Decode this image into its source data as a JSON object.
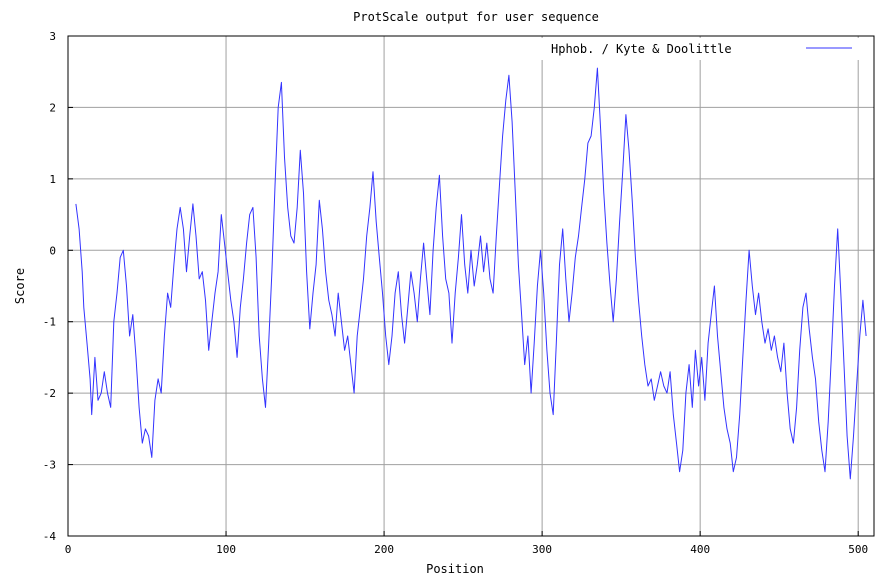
{
  "chart_data": {
    "type": "line",
    "title": "ProtScale output for user sequence",
    "xlabel": "Position",
    "ylabel": "Score",
    "xlim": [
      0,
      510
    ],
    "ylim": [
      -4,
      3
    ],
    "x_ticks": [
      "0",
      "100",
      "200",
      "300",
      "400",
      "500"
    ],
    "y_ticks": [
      "3",
      "2",
      "1",
      "0",
      "-1",
      "-2",
      "-3",
      "-4"
    ],
    "grid": true,
    "legend_position": "top-right",
    "series_color": "#3333ff",
    "series": [
      {
        "name": "Hphob. / Kyte & Doolittle",
        "points": [
          [
            5,
            0.65
          ],
          [
            7,
            0.3
          ],
          [
            9,
            -0.3
          ],
          [
            10,
            -0.8
          ],
          [
            12,
            -1.3
          ],
          [
            14,
            -1.8
          ],
          [
            15,
            -2.3
          ],
          [
            17,
            -1.5
          ],
          [
            19,
            -2.1
          ],
          [
            21,
            -2.0
          ],
          [
            23,
            -1.7
          ],
          [
            25,
            -2.0
          ],
          [
            27,
            -2.2
          ],
          [
            29,
            -1.0
          ],
          [
            31,
            -0.6
          ],
          [
            33,
            -0.1
          ],
          [
            35,
            0.0
          ],
          [
            37,
            -0.5
          ],
          [
            39,
            -1.2
          ],
          [
            41,
            -0.9
          ],
          [
            43,
            -1.5
          ],
          [
            45,
            -2.2
          ],
          [
            47,
            -2.7
          ],
          [
            49,
            -2.5
          ],
          [
            51,
            -2.6
          ],
          [
            53,
            -2.9
          ],
          [
            55,
            -2.1
          ],
          [
            57,
            -1.8
          ],
          [
            59,
            -2.0
          ],
          [
            61,
            -1.2
          ],
          [
            63,
            -0.6
          ],
          [
            65,
            -0.8
          ],
          [
            67,
            -0.2
          ],
          [
            69,
            0.3
          ],
          [
            71,
            0.6
          ],
          [
            73,
            0.3
          ],
          [
            75,
            -0.3
          ],
          [
            77,
            0.2
          ],
          [
            79,
            0.65
          ],
          [
            81,
            0.2
          ],
          [
            83,
            -0.4
          ],
          [
            85,
            -0.3
          ],
          [
            87,
            -0.7
          ],
          [
            89,
            -1.4
          ],
          [
            91,
            -1.0
          ],
          [
            93,
            -0.6
          ],
          [
            95,
            -0.3
          ],
          [
            97,
            0.5
          ],
          [
            99,
            0.1
          ],
          [
            101,
            -0.3
          ],
          [
            103,
            -0.7
          ],
          [
            105,
            -1.0
          ],
          [
            107,
            -1.5
          ],
          [
            109,
            -0.8
          ],
          [
            111,
            -0.4
          ],
          [
            113,
            0.1
          ],
          [
            115,
            0.5
          ],
          [
            117,
            0.6
          ],
          [
            119,
            -0.1
          ],
          [
            121,
            -1.2
          ],
          [
            123,
            -1.8
          ],
          [
            125,
            -2.2
          ],
          [
            127,
            -1.3
          ],
          [
            129,
            -0.3
          ],
          [
            131,
            0.9
          ],
          [
            133,
            2.0
          ],
          [
            135,
            2.35
          ],
          [
            137,
            1.3
          ],
          [
            139,
            0.6
          ],
          [
            141,
            0.2
          ],
          [
            143,
            0.1
          ],
          [
            145,
            0.6
          ],
          [
            147,
            1.4
          ],
          [
            149,
            0.8
          ],
          [
            151,
            -0.3
          ],
          [
            153,
            -1.1
          ],
          [
            155,
            -0.6
          ],
          [
            157,
            -0.2
          ],
          [
            159,
            0.7
          ],
          [
            161,
            0.3
          ],
          [
            163,
            -0.3
          ],
          [
            165,
            -0.7
          ],
          [
            167,
            -0.9
          ],
          [
            169,
            -1.2
          ],
          [
            171,
            -0.6
          ],
          [
            173,
            -1.0
          ],
          [
            175,
            -1.4
          ],
          [
            177,
            -1.2
          ],
          [
            179,
            -1.6
          ],
          [
            181,
            -2.0
          ],
          [
            183,
            -1.2
          ],
          [
            185,
            -0.8
          ],
          [
            187,
            -0.4
          ],
          [
            189,
            0.2
          ],
          [
            191,
            0.6
          ],
          [
            193,
            1.1
          ],
          [
            195,
            0.4
          ],
          [
            197,
            -0.1
          ],
          [
            199,
            -0.6
          ],
          [
            201,
            -1.2
          ],
          [
            203,
            -1.6
          ],
          [
            205,
            -1.2
          ],
          [
            207,
            -0.6
          ],
          [
            209,
            -0.3
          ],
          [
            211,
            -0.9
          ],
          [
            213,
            -1.3
          ],
          [
            215,
            -0.8
          ],
          [
            217,
            -0.3
          ],
          [
            219,
            -0.6
          ],
          [
            221,
            -1.0
          ],
          [
            223,
            -0.4
          ],
          [
            225,
            0.1
          ],
          [
            227,
            -0.4
          ],
          [
            229,
            -0.9
          ],
          [
            231,
            0.0
          ],
          [
            233,
            0.6
          ],
          [
            235,
            1.05
          ],
          [
            237,
            0.2
          ],
          [
            239,
            -0.4
          ],
          [
            241,
            -0.6
          ],
          [
            243,
            -1.3
          ],
          [
            245,
            -0.6
          ],
          [
            247,
            -0.1
          ],
          [
            249,
            0.5
          ],
          [
            251,
            -0.2
          ],
          [
            253,
            -0.6
          ],
          [
            255,
            0.0
          ],
          [
            257,
            -0.5
          ],
          [
            259,
            -0.2
          ],
          [
            261,
            0.2
          ],
          [
            263,
            -0.3
          ],
          [
            265,
            0.1
          ],
          [
            267,
            -0.4
          ],
          [
            269,
            -0.6
          ],
          [
            271,
            0.2
          ],
          [
            273,
            0.9
          ],
          [
            275,
            1.6
          ],
          [
            277,
            2.1
          ],
          [
            279,
            2.45
          ],
          [
            281,
            1.8
          ],
          [
            283,
            0.8
          ],
          [
            285,
            -0.2
          ],
          [
            287,
            -0.9
          ],
          [
            289,
            -1.6
          ],
          [
            291,
            -1.2
          ],
          [
            293,
            -2.0
          ],
          [
            295,
            -1.3
          ],
          [
            297,
            -0.5
          ],
          [
            299,
            0.0
          ],
          [
            301,
            -0.6
          ],
          [
            303,
            -1.4
          ],
          [
            305,
            -2.0
          ],
          [
            307,
            -2.3
          ],
          [
            309,
            -1.3
          ],
          [
            311,
            -0.2
          ],
          [
            313,
            0.3
          ],
          [
            315,
            -0.4
          ],
          [
            317,
            -1.0
          ],
          [
            319,
            -0.6
          ],
          [
            321,
            -0.1
          ],
          [
            323,
            0.2
          ],
          [
            325,
            0.6
          ],
          [
            327,
            1.0
          ],
          [
            329,
            1.5
          ],
          [
            331,
            1.6
          ],
          [
            333,
            2.0
          ],
          [
            335,
            2.55
          ],
          [
            337,
            1.7
          ],
          [
            339,
            0.8
          ],
          [
            341,
            0.1
          ],
          [
            343,
            -0.5
          ],
          [
            345,
            -1.0
          ],
          [
            347,
            -0.4
          ],
          [
            349,
            0.4
          ],
          [
            351,
            1.1
          ],
          [
            353,
            1.9
          ],
          [
            355,
            1.4
          ],
          [
            357,
            0.7
          ],
          [
            359,
            -0.1
          ],
          [
            361,
            -0.7
          ],
          [
            363,
            -1.2
          ],
          [
            365,
            -1.6
          ],
          [
            367,
            -1.9
          ],
          [
            369,
            -1.8
          ],
          [
            371,
            -2.1
          ],
          [
            373,
            -1.9
          ],
          [
            375,
            -1.7
          ],
          [
            377,
            -1.9
          ],
          [
            379,
            -2.0
          ],
          [
            381,
            -1.7
          ],
          [
            383,
            -2.3
          ],
          [
            385,
            -2.7
          ],
          [
            387,
            -3.1
          ],
          [
            389,
            -2.8
          ],
          [
            391,
            -2.0
          ],
          [
            393,
            -1.6
          ],
          [
            395,
            -2.2
          ],
          [
            397,
            -1.4
          ],
          [
            399,
            -1.9
          ],
          [
            401,
            -1.5
          ],
          [
            403,
            -2.1
          ],
          [
            405,
            -1.3
          ],
          [
            407,
            -0.9
          ],
          [
            409,
            -0.5
          ],
          [
            411,
            -1.2
          ],
          [
            413,
            -1.7
          ],
          [
            415,
            -2.2
          ],
          [
            417,
            -2.5
          ],
          [
            419,
            -2.7
          ],
          [
            421,
            -3.1
          ],
          [
            423,
            -2.9
          ],
          [
            425,
            -2.3
          ],
          [
            427,
            -1.5
          ],
          [
            429,
            -0.7
          ],
          [
            431,
            0.0
          ],
          [
            433,
            -0.5
          ],
          [
            435,
            -0.9
          ],
          [
            437,
            -0.6
          ],
          [
            439,
            -1.0
          ],
          [
            441,
            -1.3
          ],
          [
            443,
            -1.1
          ],
          [
            445,
            -1.4
          ],
          [
            447,
            -1.2
          ],
          [
            449,
            -1.5
          ],
          [
            451,
            -1.7
          ],
          [
            453,
            -1.3
          ],
          [
            455,
            -2.0
          ],
          [
            457,
            -2.5
          ],
          [
            459,
            -2.7
          ],
          [
            461,
            -2.2
          ],
          [
            463,
            -1.4
          ],
          [
            465,
            -0.8
          ],
          [
            467,
            -0.6
          ],
          [
            469,
            -1.1
          ],
          [
            471,
            -1.5
          ],
          [
            473,
            -1.8
          ],
          [
            475,
            -2.4
          ],
          [
            477,
            -2.8
          ],
          [
            479,
            -3.1
          ],
          [
            481,
            -2.4
          ],
          [
            483,
            -1.5
          ],
          [
            485,
            -0.5
          ],
          [
            487,
            0.3
          ],
          [
            489,
            -0.6
          ],
          [
            491,
            -1.6
          ],
          [
            493,
            -2.6
          ],
          [
            495,
            -3.2
          ],
          [
            497,
            -2.6
          ],
          [
            499,
            -1.9
          ],
          [
            501,
            -1.2
          ],
          [
            503,
            -0.7
          ],
          [
            505,
            -1.2
          ]
        ]
      }
    ]
  }
}
